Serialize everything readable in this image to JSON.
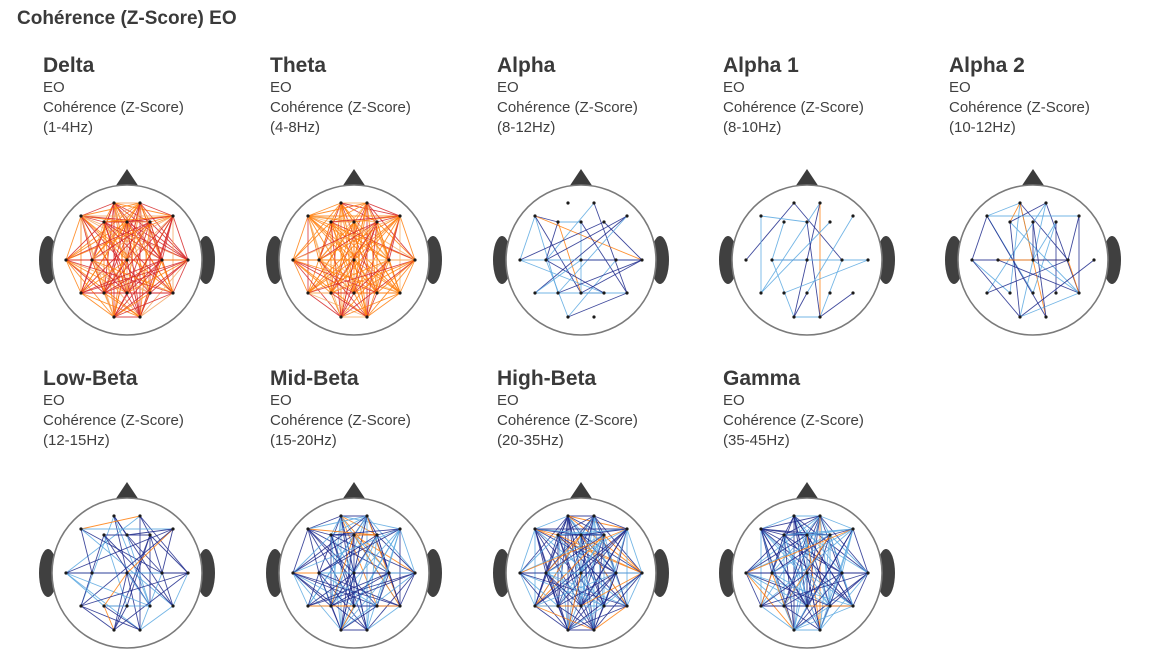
{
  "page": {
    "title": "Cohérence (Z-Score) EO"
  },
  "colors": {
    "head_outline": "#7a7a7a",
    "ear_fill": "#404040",
    "nose_fill": "#3c3c3c",
    "electrode": "#1a1a1a",
    "warm_strong": "#d62728",
    "warm_mid": "#ff7f0e",
    "cool_strong": "#1f2a8c",
    "cool_light": "#5aa8e0"
  },
  "panels": [
    {
      "band": "Delta",
      "condition": "EO",
      "measure": "Cohérence (Z-Score)",
      "range": "(1-4Hz)",
      "palette": "warm",
      "density": 0.95,
      "seed": 11
    },
    {
      "band": "Theta",
      "condition": "EO",
      "measure": "Cohérence (Z-Score)",
      "range": "(4-8Hz)",
      "palette": "warmorange",
      "density": 0.9,
      "seed": 23
    },
    {
      "band": "Alpha",
      "condition": "EO",
      "measure": "Cohérence (Z-Score)",
      "range": "(8-12Hz)",
      "palette": "coolsparse",
      "density": 0.22,
      "seed": 37
    },
    {
      "band": "Alpha 1",
      "condition": "EO",
      "measure": "Cohérence (Z-Score)",
      "range": "(8-10Hz)",
      "palette": "coolsparse",
      "density": 0.14,
      "seed": 41
    },
    {
      "band": "Alpha 2",
      "condition": "EO",
      "measure": "Cohérence (Z-Score)",
      "range": "(10-12Hz)",
      "palette": "coolsparse",
      "density": 0.2,
      "seed": 53
    },
    {
      "band": "Low-Beta",
      "condition": "EO",
      "measure": "Cohérence (Z-Score)",
      "range": "(12-15Hz)",
      "palette": "coolsparse",
      "density": 0.28,
      "seed": 67
    },
    {
      "band": "Mid-Beta",
      "condition": "EO",
      "measure": "Cohérence (Z-Score)",
      "range": "(15-20Hz)",
      "palette": "cool",
      "density": 0.6,
      "seed": 71
    },
    {
      "band": "High-Beta",
      "condition": "EO",
      "measure": "Cohérence (Z-Score)",
      "range": "(20-35Hz)",
      "palette": "cool",
      "density": 0.85,
      "seed": 83
    },
    {
      "band": "Gamma",
      "condition": "EO",
      "measure": "Cohérence (Z-Score)",
      "range": "(35-45Hz)",
      "palette": "cool",
      "density": 0.75,
      "seed": 97
    }
  ]
}
